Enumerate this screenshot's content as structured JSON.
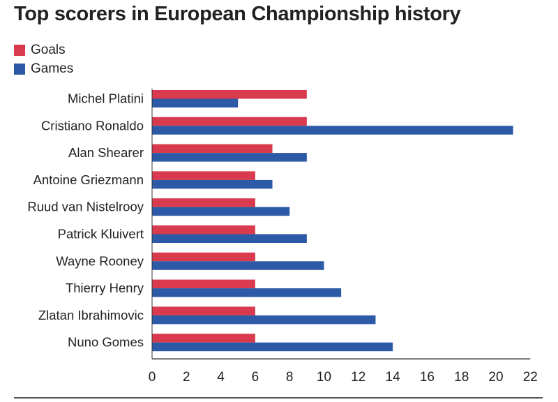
{
  "chart_data": {
    "type": "bar",
    "orientation": "horizontal",
    "title": "Top scorers in European Championship history",
    "categories": [
      "Michel Platini",
      "Cristiano Ronaldo",
      "Alan Shearer",
      "Antoine Griezmann",
      "Ruud van Nistelrooy",
      "Patrick Kluivert",
      "Wayne Rooney",
      "Thierry Henry",
      "Zlatan Ibrahimovic",
      "Nuno Gomes"
    ],
    "series": [
      {
        "name": "Goals",
        "color": "#d93a4e",
        "values": [
          9,
          9,
          7,
          6,
          6,
          6,
          6,
          6,
          6,
          6
        ]
      },
      {
        "name": "Games",
        "color": "#2c5aa6",
        "values": [
          5,
          21,
          9,
          7,
          8,
          9,
          10,
          11,
          13,
          14
        ]
      }
    ],
    "xlim": [
      0,
      22
    ],
    "xticks": [
      "0",
      "2",
      "4",
      "6",
      "8",
      "10",
      "12",
      "14",
      "16",
      "18",
      "20",
      "22"
    ],
    "legend_position": "top-left",
    "grid": false
  }
}
